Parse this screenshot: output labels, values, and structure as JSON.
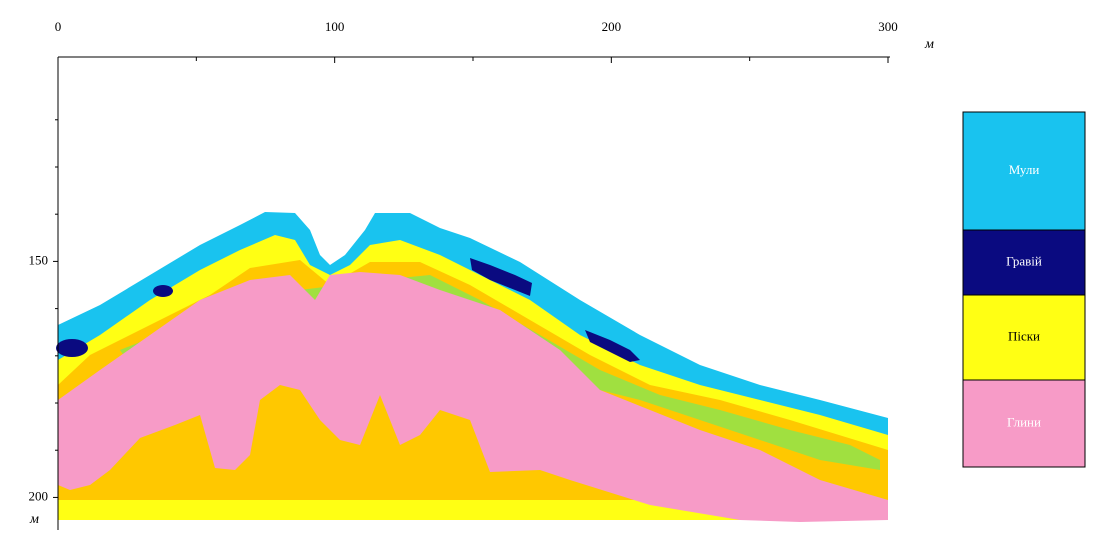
{
  "chart_data": {
    "type": "cross-section",
    "x_unit": "м",
    "y_unit": "м",
    "xlim": [
      0,
      300
    ],
    "xticks": [
      0,
      100,
      200,
      300
    ],
    "x_minor_ticks": [
      50,
      150,
      250
    ],
    "ylim": [
      106.7,
      206.9
    ],
    "yticks": [
      150,
      200
    ],
    "y_minor_ticks": [
      120,
      130,
      140,
      160,
      170,
      180,
      190
    ],
    "legend": [
      {
        "name": "Мули",
        "color": "#19c3ef",
        "text_color": "#ffffff"
      },
      {
        "name": "Гравій",
        "color": "#0a0a80",
        "text_color": "#ffffff"
      },
      {
        "name": "Піски",
        "color": "#ffff14",
        "text_color": "#000000"
      },
      {
        "name": "Глини",
        "color": "#f79bc7",
        "text_color": "#ffffff"
      }
    ]
  }
}
